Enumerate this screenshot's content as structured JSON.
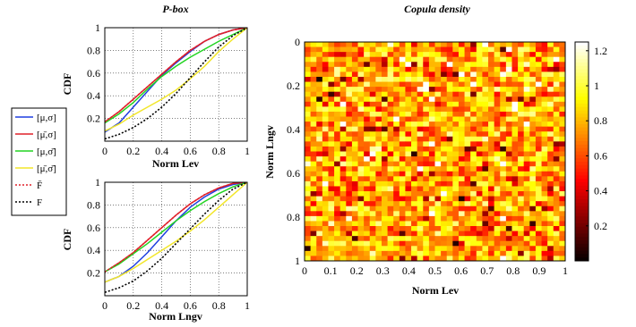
{
  "chart_data": [
    {
      "type": "line",
      "title": "P-box",
      "xlabel": "Norm Lev",
      "ylabel": "CDF",
      "xlim": [
        0,
        1
      ],
      "ylim": [
        0,
        1
      ],
      "grid": true,
      "x": [
        0,
        0.1,
        0.2,
        0.3,
        0.4,
        0.5,
        0.6,
        0.7,
        0.8,
        0.9,
        1
      ],
      "x_ticks": [
        "0",
        "0.2",
        "0.4",
        "0.6",
        "0.8",
        "1"
      ],
      "y_ticks": [
        "0.2",
        "0.4",
        "0.6",
        "0.8",
        "1"
      ],
      "series": [
        {
          "key": "blue",
          "color": "#1f3fe0",
          "dash": false,
          "values": [
            0.08,
            0.16,
            0.3,
            0.44,
            0.58,
            0.69,
            0.79,
            0.88,
            0.94,
            0.98,
            1.0
          ]
        },
        {
          "key": "red",
          "color": "#e0202a",
          "dash": false,
          "values": [
            0.17,
            0.26,
            0.37,
            0.48,
            0.59,
            0.7,
            0.8,
            0.88,
            0.94,
            0.98,
            1.0
          ]
        },
        {
          "key": "green",
          "color": "#22d422",
          "dash": false,
          "values": [
            0.16,
            0.24,
            0.34,
            0.46,
            0.57,
            0.66,
            0.74,
            0.81,
            0.88,
            0.94,
            1.0
          ]
        },
        {
          "key": "yellow",
          "color": "#f2e62a",
          "dash": false,
          "values": [
            0.09,
            0.15,
            0.23,
            0.3,
            0.37,
            0.45,
            0.55,
            0.66,
            0.79,
            0.9,
            1.0
          ]
        },
        {
          "key": "red-dotted",
          "color": "#e0202a",
          "dash": true,
          "values": [
            0.17,
            0.26,
            0.37,
            0.48,
            0.59,
            0.7,
            0.8,
            0.88,
            0.94,
            0.98,
            1.0
          ]
        },
        {
          "key": "black-dotted",
          "color": "#000000",
          "dash": true,
          "values": [
            0.02,
            0.06,
            0.12,
            0.2,
            0.3,
            0.42,
            0.56,
            0.7,
            0.83,
            0.93,
            1.0
          ]
        }
      ]
    },
    {
      "type": "line",
      "title": "",
      "xlabel": "Norm Lngv",
      "ylabel": "CDF",
      "xlim": [
        0,
        1
      ],
      "ylim": [
        0,
        1
      ],
      "grid": true,
      "x": [
        0,
        0.1,
        0.2,
        0.3,
        0.4,
        0.5,
        0.6,
        0.7,
        0.8,
        0.9,
        1
      ],
      "x_ticks": [
        "0",
        "0.2",
        "0.4",
        "0.6",
        "0.8",
        "1"
      ],
      "y_ticks": [
        "0.2",
        "0.4",
        "0.6",
        "0.8",
        "1"
      ],
      "series": [
        {
          "key": "blue",
          "color": "#1f3fe0",
          "dash": false,
          "values": [
            0.12,
            0.17,
            0.26,
            0.38,
            0.52,
            0.66,
            0.78,
            0.87,
            0.94,
            0.98,
            1.0
          ]
        },
        {
          "key": "red",
          "color": "#e0202a",
          "dash": false,
          "values": [
            0.21,
            0.29,
            0.38,
            0.49,
            0.6,
            0.71,
            0.81,
            0.89,
            0.95,
            0.99,
            1.0
          ]
        },
        {
          "key": "green",
          "color": "#22d422",
          "dash": false,
          "values": [
            0.21,
            0.28,
            0.37,
            0.46,
            0.56,
            0.66,
            0.75,
            0.83,
            0.9,
            0.96,
            1.0
          ]
        },
        {
          "key": "yellow",
          "color": "#f2e62a",
          "dash": false,
          "values": [
            0.12,
            0.17,
            0.24,
            0.32,
            0.4,
            0.48,
            0.57,
            0.67,
            0.78,
            0.89,
            1.0
          ]
        },
        {
          "key": "red-dotted",
          "color": "#e0202a",
          "dash": true,
          "values": [
            0.21,
            0.29,
            0.38,
            0.49,
            0.6,
            0.71,
            0.81,
            0.89,
            0.95,
            0.99,
            1.0
          ]
        },
        {
          "key": "black-dotted",
          "color": "#000000",
          "dash": true,
          "values": [
            0.03,
            0.07,
            0.13,
            0.22,
            0.33,
            0.46,
            0.59,
            0.72,
            0.84,
            0.94,
            1.0
          ]
        }
      ]
    },
    {
      "type": "heatmap",
      "title": "Copula density",
      "xlabel": "Norm Lev",
      "ylabel": "Norm Lngv",
      "xlim": [
        0,
        1
      ],
      "ylim": [
        0,
        1
      ],
      "y_reversed": true,
      "grid_size": 44,
      "x_ticks": [
        "0",
        "0.1",
        "0.2",
        "0.3",
        "0.4",
        "0.5",
        "0.6",
        "0.7",
        "0.8",
        "0.9",
        "1"
      ],
      "y_ticks": [
        "0",
        "0.2",
        "0.4",
        "0.6",
        "0.8",
        "1"
      ],
      "colorbar": {
        "colormap": "hot",
        "range": [
          0,
          1.25
        ],
        "ticks": [
          "0.2",
          "0.4",
          "0.6",
          "0.8",
          "1",
          "1.2"
        ],
        "tick_values": [
          0.2,
          0.4,
          0.6,
          0.8,
          1.0,
          1.2
        ]
      },
      "value_distribution": "approximately uniform, mostly between 0.5 and 1.0 with scattered dark (low) and pale (high) cells"
    }
  ],
  "legend": {
    "placement": "left",
    "entries": [
      {
        "key": "blue",
        "label": "[μ,σ]",
        "under": "μ",
        "over": ""
      },
      {
        "key": "red",
        "label": "[μ̄,σ]",
        "under": "",
        "over": "μ"
      },
      {
        "key": "green",
        "label": "[μ,σ̄]",
        "under": "μ",
        "over": "σ"
      },
      {
        "key": "yellow",
        "label": "[μ̄,σ̄]",
        "under": "",
        "over": "μσ"
      },
      {
        "key": "red-dotted",
        "label": "F̄",
        "under": "",
        "over": "F"
      },
      {
        "key": "black-dotted",
        "label": "F",
        "under": "F",
        "over": ""
      }
    ]
  }
}
